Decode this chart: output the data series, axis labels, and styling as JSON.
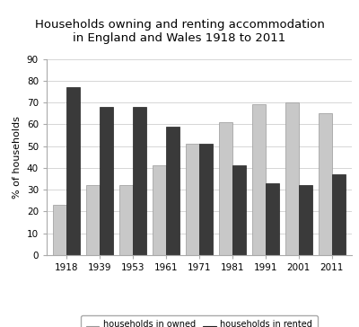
{
  "title": "Households owning and renting accommodation\nin England and Wales 1918 to 2011",
  "years": [
    "1918",
    "1939",
    "1953",
    "1961",
    "1971",
    "1981",
    "1991",
    "2001",
    "2011"
  ],
  "owned": [
    23,
    32,
    32,
    41,
    51,
    61,
    69,
    70,
    65
  ],
  "rented": [
    77,
    68,
    68,
    59,
    51,
    41,
    33,
    32,
    37
  ],
  "owned_color": "#c8c8c8",
  "rented_color": "#3a3a3a",
  "owned_edge": "#999999",
  "rented_edge": "#222222",
  "ylabel": "% of households",
  "ylim": [
    0,
    90
  ],
  "yticks": [
    0,
    10,
    20,
    30,
    40,
    50,
    60,
    70,
    80,
    90
  ],
  "legend_owned": "households in owned\naccommodation",
  "legend_rented": "households in rented\naccommodation",
  "bar_width": 0.4,
  "title_fontsize": 9.5,
  "axis_fontsize": 7.5,
  "legend_fontsize": 7,
  "ylabel_fontsize": 8
}
